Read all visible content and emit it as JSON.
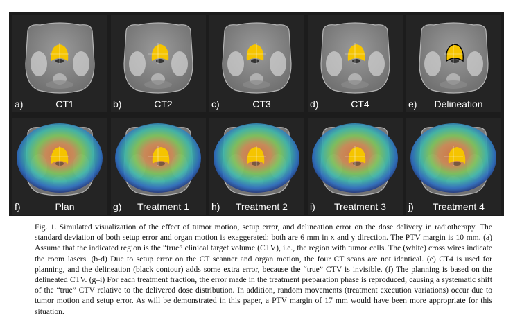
{
  "panels_top": [
    {
      "letter": "a)",
      "name": "CT1"
    },
    {
      "letter": "b)",
      "name": "CT2"
    },
    {
      "letter": "c)",
      "name": "CT3"
    },
    {
      "letter": "d)",
      "name": "CT4"
    },
    {
      "letter": "e)",
      "name": "Delineation"
    }
  ],
  "panels_bottom": [
    {
      "letter": "f)",
      "name": "Plan"
    },
    {
      "letter": "g)",
      "name": "Treatment 1"
    },
    {
      "letter": "h)",
      "name": "Treatment 2"
    },
    {
      "letter": "i)",
      "name": "Treatment 3"
    },
    {
      "letter": "j)",
      "name": "Treatment 4"
    }
  ],
  "caption": "Fig. 1. Simulated visualization of the effect of tumor motion, setup error, and delineation error on the dose delivery in radiotherapy. The standard deviation of both setup error and organ motion is exaggerated: both are 6 mm in x and y direction. The PTV margin is 10 mm. (a) Assume that the indicated region is the “true” clinical target volume (CTV), i.e., the region with tumor cells. The (white) cross wires indicate the room lasers. (b-d) Due to setup error on the CT scanner and organ motion, the four CT scans are not identical. (e) CT4 is used for planning, and the delineation (black contour) adds some extra error, because the “true” CTV is invisible. (f) The planning is based on the delineated CTV. (g–i) For each treatment fraction, the error made in the treatment preparation phase is reproduced, causing a systematic shift of the “true” CTV relative to the delivered dose distribution. In addition, random movements (treatment execution variations) occur due to tumor motion and setup error. As will be demonstrated in this paper, a PTV margin of 17 mm would have been more appropriate for this situation."
}
